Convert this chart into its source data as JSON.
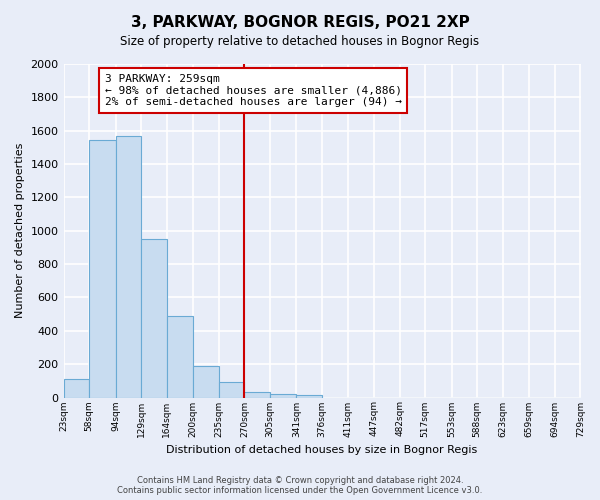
{
  "title": "3, PARKWAY, BOGNOR REGIS, PO21 2XP",
  "subtitle": "Size of property relative to detached houses in Bognor Regis",
  "xlabel": "Distribution of detached houses by size in Bognor Regis",
  "ylabel": "Number of detached properties",
  "bin_labels": [
    "23sqm",
    "58sqm",
    "94sqm",
    "129sqm",
    "164sqm",
    "200sqm",
    "235sqm",
    "270sqm",
    "305sqm",
    "341sqm",
    "376sqm",
    "411sqm",
    "447sqm",
    "482sqm",
    "517sqm",
    "553sqm",
    "588sqm",
    "623sqm",
    "659sqm",
    "694sqm",
    "729sqm"
  ],
  "bar_heights": [
    110,
    1545,
    1570,
    950,
    490,
    190,
    95,
    35,
    20,
    15,
    0,
    0,
    0,
    0,
    0,
    0,
    0,
    0,
    0,
    0
  ],
  "bar_color": "#c8dcf0",
  "bar_edge_color": "#6aaad4",
  "property_line_x_label": "270sqm",
  "property_line_color": "#cc0000",
  "annotation_line1": "3 PARKWAY: 259sqm",
  "annotation_line2": "← 98% of detached houses are smaller (4,886)",
  "annotation_line3": "2% of semi-detached houses are larger (94) →",
  "annotation_box_color": "#ffffff",
  "annotation_box_edge_color": "#cc0000",
  "ylim": [
    0,
    2000
  ],
  "yticks": [
    0,
    200,
    400,
    600,
    800,
    1000,
    1200,
    1400,
    1600,
    1800,
    2000
  ],
  "footer_line1": "Contains HM Land Registry data © Crown copyright and database right 2024.",
  "footer_line2": "Contains public sector information licensed under the Open Government Licence v3.0.",
  "bg_color": "#e8edf8",
  "grid_color": "#ffffff",
  "plot_bg_color": "#e8edf8"
}
